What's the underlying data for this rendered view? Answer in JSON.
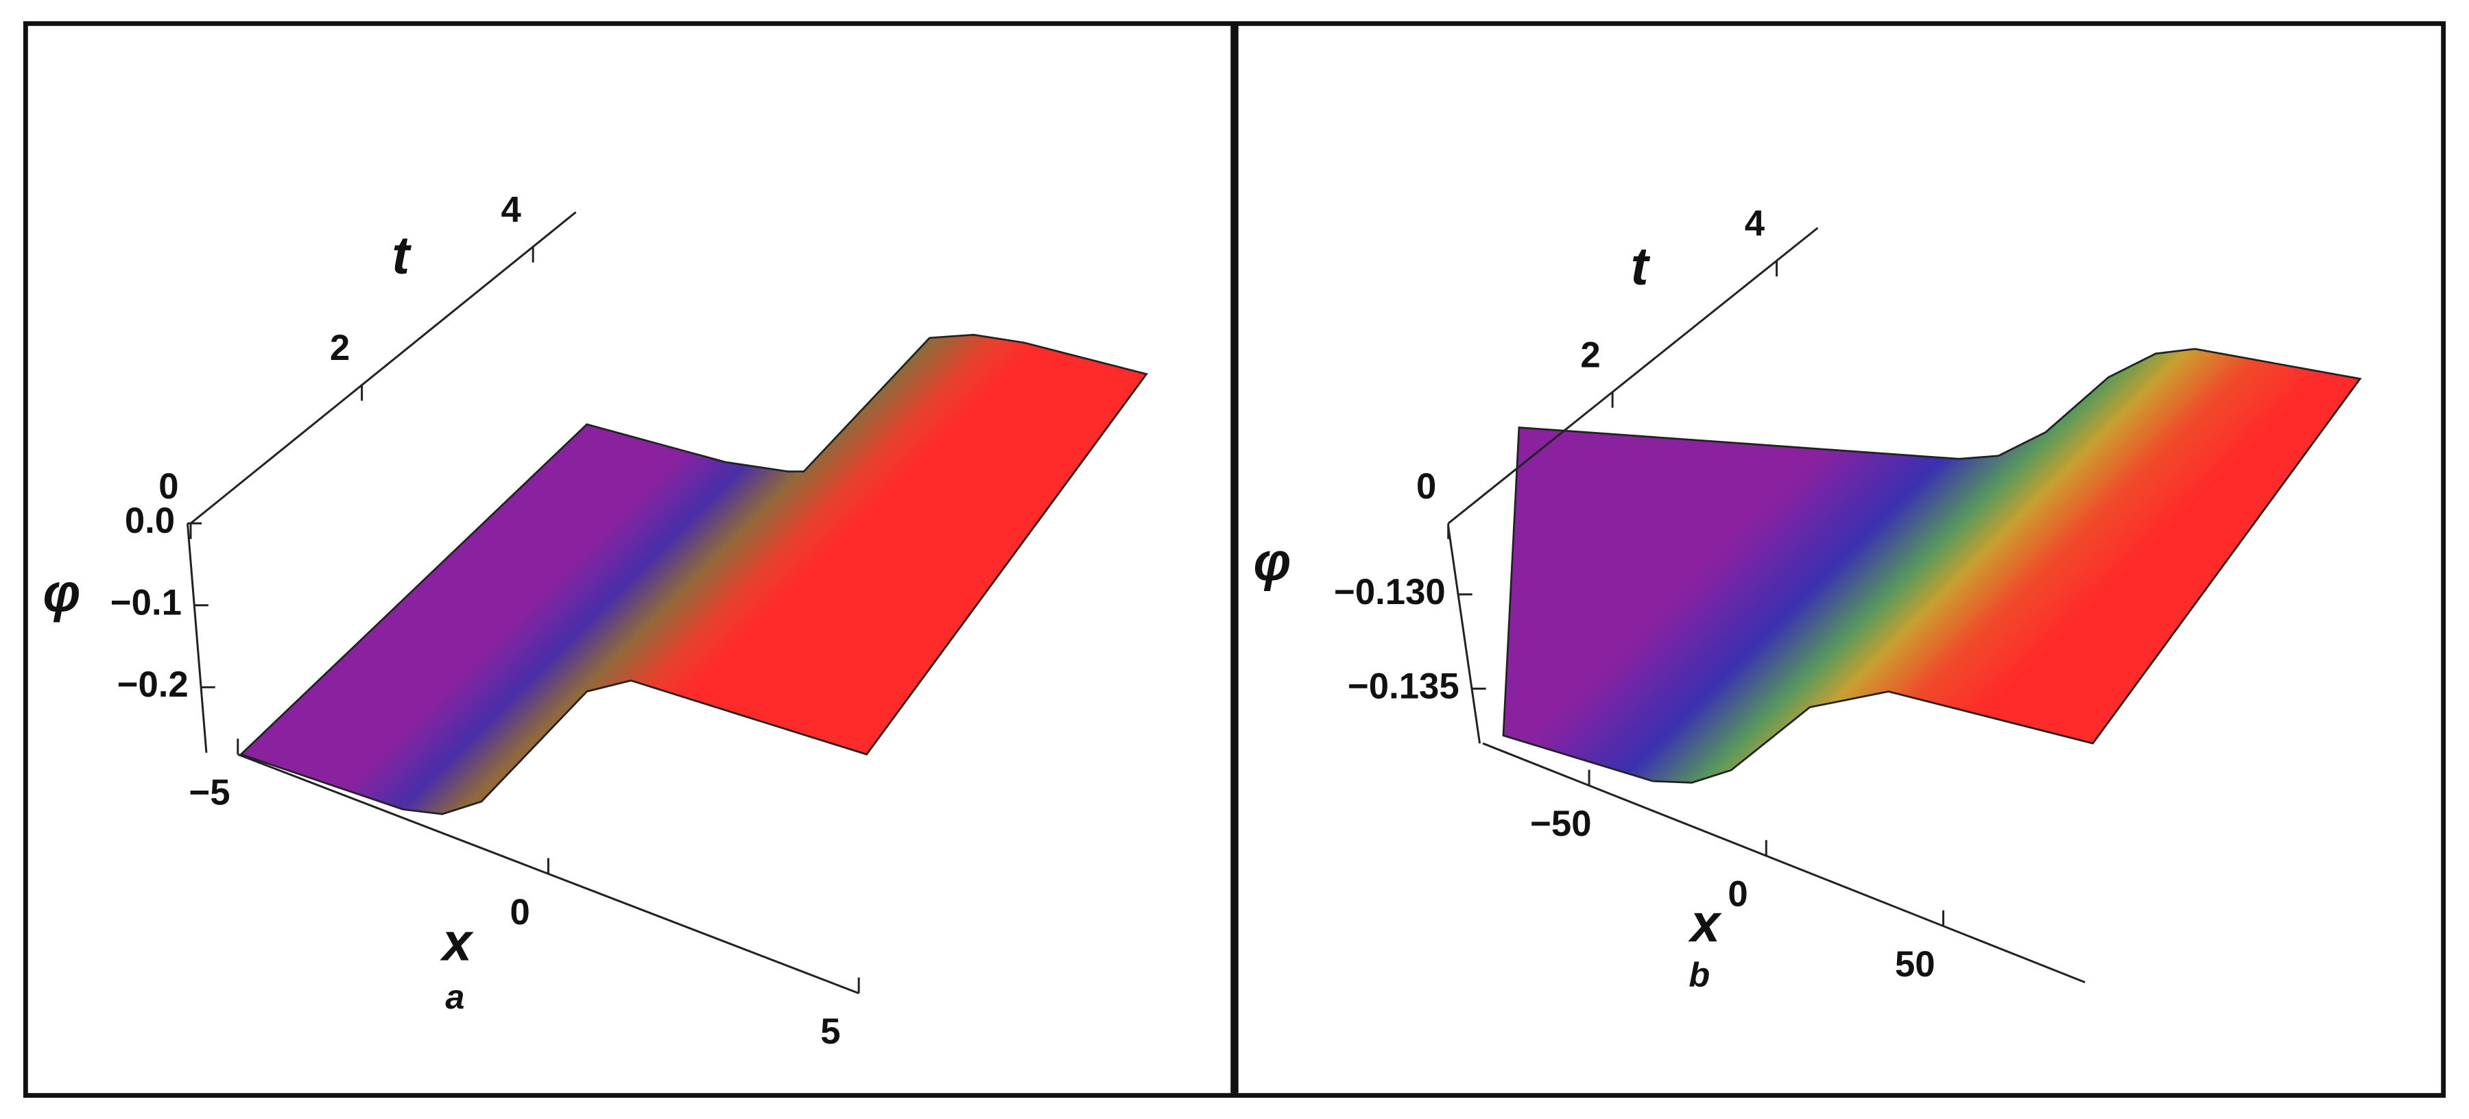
{
  "chart_data": [
    {
      "type": "surface3d",
      "caption": "a",
      "xlabel": "x",
      "ylabel": "t",
      "zlabel": "φ",
      "xlim": [
        -5,
        5
      ],
      "xticks": [
        {
          "value": -5,
          "label": "−5"
        },
        0,
        5
      ],
      "ylim": [
        0,
        4.5
      ],
      "yticks": [
        0,
        2,
        4
      ],
      "zlim": [
        0,
        -0.28
      ],
      "zticks": [
        {
          "value": 0,
          "label": "0.0"
        },
        {
          "value": -0.1,
          "label": "−0.1"
        },
        {
          "value": -0.2,
          "label": "−0.2"
        }
      ]
    },
    {
      "type": "surface3d",
      "caption": "b",
      "xlabel": "x",
      "ylabel": "t",
      "zlabel": "φ",
      "xlim": [
        -80,
        90
      ],
      "xticks": [
        {
          "value": -50,
          "label": "−50"
        },
        0,
        50
      ],
      "ylim": [
        0,
        4.5
      ],
      "yticks": [
        0,
        2,
        4
      ],
      "zlim": [
        -0.1264,
        -0.1379
      ],
      "zticks": [
        {
          "value": -0.13,
          "label": "−0.130"
        },
        {
          "value": -0.135,
          "label": "−0.135"
        }
      ]
    }
  ]
}
